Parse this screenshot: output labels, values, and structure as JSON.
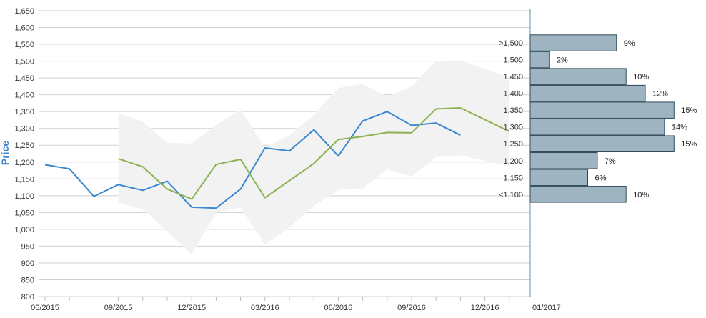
{
  "chart_data": [
    {
      "type": "line",
      "title": "",
      "xlabel": "",
      "ylabel": "Price",
      "ylim": [
        800,
        1650
      ],
      "y_ticks": [
        800,
        850,
        900,
        950,
        1000,
        1050,
        1100,
        1150,
        1200,
        1250,
        1300,
        1350,
        1400,
        1450,
        1500,
        1550,
        1600,
        1650
      ],
      "y_tick_labels": [
        "800",
        "850",
        "900",
        "950",
        "1,000",
        "1,050",
        "1,100",
        "1,150",
        "1,200",
        "1,250",
        "1,300",
        "1,350",
        "1,400",
        "1,450",
        "1,500",
        "1,550",
        "1,600",
        "1,650"
      ],
      "x_tick_labels": [
        "06/2015",
        "09/2015",
        "12/2015",
        "03/2016",
        "06/2016",
        "09/2016",
        "12/2016",
        "01/2017"
      ],
      "x_months": [
        "2015-06",
        "2015-07",
        "2015-08",
        "2015-09",
        "2015-10",
        "2015-11",
        "2015-12",
        "2016-01",
        "2016-02",
        "2016-03",
        "2016-04",
        "2016-05",
        "2016-06",
        "2016-07",
        "2016-08",
        "2016-09",
        "2016-10",
        "2016-11",
        "2016-12",
        "2017-01"
      ],
      "grid": true,
      "series": [
        {
          "color": "#3a86d1",
          "points": [
            [
              "2015-06",
              1192
            ],
            [
              "2015-07",
              1180
            ],
            [
              "2015-08",
              1098
            ],
            [
              "2015-09",
              1133
            ],
            [
              "2015-10",
              1116
            ],
            [
              "2015-11",
              1143
            ],
            [
              "2015-12",
              1066
            ],
            [
              "2016-01",
              1063
            ],
            [
              "2016-02",
              1120
            ],
            [
              "2016-03",
              1242
            ],
            [
              "2016-04",
              1233
            ],
            [
              "2016-05",
              1296
            ],
            [
              "2016-06",
              1218
            ],
            [
              "2016-07",
              1322
            ],
            [
              "2016-08",
              1350
            ],
            [
              "2016-09",
              1309
            ],
            [
              "2016-10",
              1316
            ],
            [
              "2016-11",
              1280
            ]
          ]
        },
        {
          "color": "#8db252",
          "points": [
            [
              "2015-09",
              1210
            ],
            [
              "2015-10",
              1186
            ],
            [
              "2015-11",
              1120
            ],
            [
              "2015-12",
              1090
            ],
            [
              "2016-01",
              1193
            ],
            [
              "2016-02",
              1208
            ],
            [
              "2016-03",
              1094
            ],
            [
              "2016-05",
              1196
            ],
            [
              "2016-06",
              1267
            ],
            [
              "2016-07",
              1276
            ],
            [
              "2016-08",
              1288
            ],
            [
              "2016-09",
              1287
            ],
            [
              "2016-10",
              1358
            ],
            [
              "2016-11",
              1361
            ],
            [
              "2017-01",
              1291
            ]
          ]
        }
      ],
      "band": {
        "color": "#f2f2f2",
        "upper": [
          [
            "2015-09",
            1345
          ],
          [
            "2015-10",
            1320
          ],
          [
            "2015-11",
            1258
          ],
          [
            "2015-12",
            1255
          ],
          [
            "2016-01",
            1310
          ],
          [
            "2016-02",
            1356
          ],
          [
            "2016-03",
            1243
          ],
          [
            "2016-04",
            1280
          ],
          [
            "2016-05",
            1340
          ],
          [
            "2016-06",
            1420
          ],
          [
            "2016-07",
            1432
          ],
          [
            "2016-08",
            1395
          ],
          [
            "2016-09",
            1424
          ],
          [
            "2016-10",
            1500
          ],
          [
            "2016-11",
            1502
          ],
          [
            "2017-01",
            1452
          ]
        ],
        "lower": [
          [
            "2015-09",
            1080
          ],
          [
            "2015-10",
            1060
          ],
          [
            "2015-11",
            995
          ],
          [
            "2015-12",
            925
          ],
          [
            "2016-01",
            1050
          ],
          [
            "2016-02",
            1065
          ],
          [
            "2016-03",
            955
          ],
          [
            "2016-04",
            1005
          ],
          [
            "2016-05",
            1070
          ],
          [
            "2016-06",
            1117
          ],
          [
            "2016-07",
            1122
          ],
          [
            "2016-08",
            1178
          ],
          [
            "2016-09",
            1158
          ],
          [
            "2016-10",
            1215
          ],
          [
            "2016-11",
            1220
          ],
          [
            "2017-01",
            1188
          ]
        ]
      }
    },
    {
      "type": "bar",
      "orientation": "horizontal",
      "categories": [
        ">1,500",
        "1,500",
        "1,450",
        "1,400",
        "1,350",
        "1,300",
        "1,250",
        "1,200",
        "1,150",
        "<1,100"
      ],
      "category_levels": [
        1550,
        1500,
        1450,
        1400,
        1350,
        1300,
        1250,
        1200,
        1150,
        1100
      ],
      "values": [
        9,
        2,
        10,
        12,
        15,
        14,
        15,
        7,
        6,
        10
      ],
      "value_labels": [
        "9%",
        "2%",
        "10%",
        "12%",
        "15%",
        "14%",
        "15%",
        "7%",
        "6%",
        "10%"
      ],
      "color": "#9fb4c1",
      "border_color": "#2f4a5a"
    }
  ]
}
